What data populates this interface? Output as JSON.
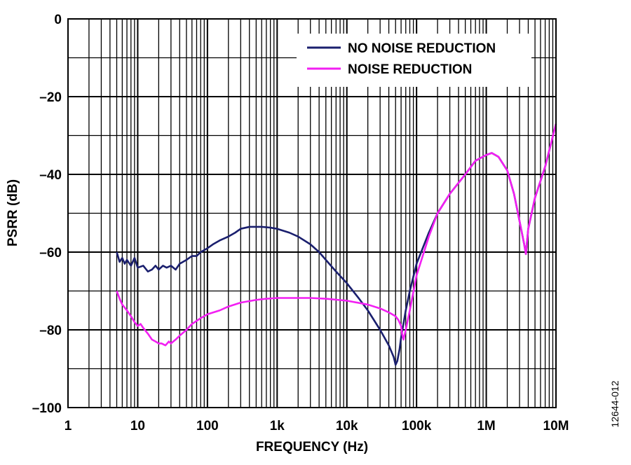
{
  "chart_data": {
    "type": "line",
    "xlabel": "FREQUENCY (Hz)",
    "ylabel": "PSRR (dB)",
    "x_scale": "log",
    "xlim": [
      1,
      10000000
    ],
    "ylim": [
      -100,
      0
    ],
    "grid": true,
    "legend_position": "top-right",
    "x_ticks": [
      {
        "value": 1,
        "label": "1"
      },
      {
        "value": 10,
        "label": "10"
      },
      {
        "value": 100,
        "label": "100"
      },
      {
        "value": 1000,
        "label": "1k"
      },
      {
        "value": 10000,
        "label": "10k"
      },
      {
        "value": 100000,
        "label": "100k"
      },
      {
        "value": 1000000,
        "label": "1M"
      },
      {
        "value": 10000000,
        "label": "10M"
      }
    ],
    "y_ticks": [
      {
        "value": 0,
        "label": "0"
      },
      {
        "value": -20,
        "label": "–20"
      },
      {
        "value": -40,
        "label": "–40"
      },
      {
        "value": -60,
        "label": "–60"
      },
      {
        "value": -80,
        "label": "–80"
      },
      {
        "value": -100,
        "label": "–100"
      }
    ],
    "series": [
      {
        "name": "NO NOISE REDUCTION",
        "color": "#1a1f6e",
        "x": [
          5,
          5.5,
          6,
          6.5,
          7,
          8,
          9,
          10,
          12,
          14,
          16,
          18,
          20,
          23,
          26,
          30,
          35,
          40,
          50,
          60,
          70,
          80,
          100,
          120,
          150,
          200,
          250,
          300,
          400,
          500,
          600,
          800,
          1000,
          1500,
          2000,
          3000,
          4000,
          5000,
          7000,
          10000,
          15000,
          20000,
          30000,
          40000,
          47000,
          50000,
          53000,
          57000,
          60000,
          70000,
          80000,
          100000,
          150000,
          200000,
          300000,
          500000,
          700000,
          1000000,
          1200000,
          1500000,
          2000000,
          2500000,
          3000000,
          3500000,
          3700000,
          4000000,
          5000000,
          7000000,
          10000000
        ],
        "y": [
          -60,
          -62.5,
          -61.5,
          -63,
          -62,
          -63.5,
          -61.5,
          -64,
          -63.5,
          -65,
          -64.5,
          -63.5,
          -64.5,
          -63.5,
          -64,
          -63.5,
          -64.5,
          -63,
          -62,
          -61,
          -61,
          -60,
          -59,
          -58,
          -57,
          -56,
          -55,
          -54,
          -53.5,
          -53.5,
          -53.5,
          -53.7,
          -54,
          -55,
          -56,
          -58,
          -60,
          -62,
          -65,
          -68,
          -72,
          -75,
          -80,
          -84,
          -87,
          -89,
          -88,
          -85,
          -82,
          -75,
          -70,
          -63,
          -55,
          -50,
          -45,
          -40,
          -36.5,
          -35,
          -34.5,
          -35.5,
          -39,
          -45,
          -52,
          -58,
          -60.5,
          -54,
          -46,
          -38,
          -27
        ]
      },
      {
        "name": "NOISE REDUCTION",
        "color": "#f21ff2",
        "x": [
          5,
          5.5,
          6,
          7,
          8,
          9,
          10,
          11,
          12,
          14,
          16,
          18,
          20,
          22,
          25,
          28,
          30,
          35,
          40,
          50,
          60,
          80,
          100,
          150,
          200,
          300,
          500,
          700,
          1000,
          2000,
          3000,
          5000,
          10000,
          20000,
          30000,
          40000,
          50000,
          55000,
          60000,
          62000,
          65000,
          70000,
          80000,
          100000,
          150000,
          200000,
          300000,
          500000,
          700000,
          1000000,
          1200000,
          1500000,
          2000000,
          2500000,
          3000000,
          3500000,
          3700000,
          4000000,
          5000000,
          7000000,
          10000000
        ],
        "y": [
          -70,
          -72,
          -73.5,
          -75,
          -76.5,
          -78,
          -79,
          -78.5,
          -79.5,
          -81,
          -82.5,
          -83,
          -83.5,
          -83.5,
          -84,
          -83,
          -83.5,
          -82.5,
          -81.5,
          -80,
          -78.5,
          -77,
          -76,
          -75,
          -74,
          -73,
          -72.3,
          -72,
          -71.8,
          -71.8,
          -71.8,
          -72,
          -72.5,
          -73.5,
          -74.5,
          -75.5,
          -76.5,
          -77.5,
          -79,
          -81,
          -82.5,
          -80,
          -75,
          -66,
          -56,
          -50,
          -45,
          -40,
          -36.5,
          -35,
          -34.5,
          -35.5,
          -39,
          -45,
          -52,
          -58,
          -60.5,
          -54,
          -46,
          -38,
          -27
        ]
      }
    ]
  },
  "figure_id": "12644-012"
}
